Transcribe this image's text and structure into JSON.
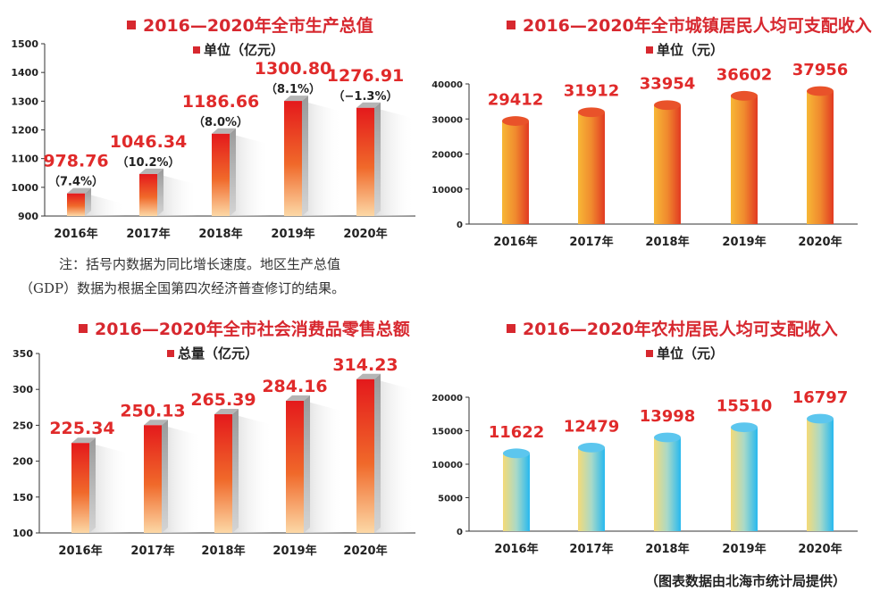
{
  "colors": {
    "title": "#d7282f",
    "label": "#e02a2a",
    "axis": "#333333"
  },
  "chart_data": [
    {
      "type": "bar",
      "title": "2016—2020年全市生产总值",
      "unit_label": "单位（亿元）",
      "categories": [
        "2016年",
        "2017年",
        "2018年",
        "2019年",
        "2020年"
      ],
      "values": [
        978.76,
        1046.34,
        1186.66,
        1300.8,
        1276.91
      ],
      "value_labels": [
        "978.76",
        "1046.34",
        "1186.66",
        "1300.80",
        "1276.91"
      ],
      "growth_labels": [
        "（7.4%）",
        "（10.2%）",
        "（8.0%）",
        "（8.1%）",
        "（−1.3%）"
      ],
      "yticks": [
        "900",
        "1000",
        "1100",
        "1200",
        "1300",
        "1400",
        "1500"
      ],
      "ylim": [
        900,
        1500
      ],
      "style": "red-3d"
    },
    {
      "type": "bar",
      "title": "2016—2020年全市城镇居民人均可支配收入",
      "unit_label": "单位（元）",
      "categories": [
        "2016年",
        "2017年",
        "2018年",
        "2019年",
        "2020年"
      ],
      "values": [
        29412,
        31912,
        33954,
        36602,
        37956
      ],
      "value_labels": [
        "29412",
        "31912",
        "33954",
        "36602",
        "37956"
      ],
      "yticks": [
        "0",
        "10000",
        "20000",
        "30000",
        "40000"
      ],
      "ylim": [
        0,
        40000
      ],
      "style": "orange-cylinder"
    },
    {
      "type": "bar",
      "title": "2016—2020年全市社会消费品零售总额",
      "unit_label": "总量（亿元）",
      "categories": [
        "2016年",
        "2017年",
        "2018年",
        "2019年",
        "2020年"
      ],
      "values": [
        225.34,
        250.13,
        265.39,
        284.16,
        314.23
      ],
      "value_labels": [
        "225.34",
        "250.13",
        "265.39",
        "284.16",
        "314.23"
      ],
      "yticks": [
        "100",
        "150",
        "200",
        "250",
        "300",
        "350"
      ],
      "ylim": [
        100,
        350
      ],
      "style": "red-3d"
    },
    {
      "type": "bar",
      "title": "2016—2020年农村居民人均可支配收入",
      "unit_label": "单位（元）",
      "categories": [
        "2016年",
        "2017年",
        "2018年",
        "2019年",
        "2020年"
      ],
      "values": [
        11622,
        12479,
        13998,
        15510,
        16797
      ],
      "value_labels": [
        "11622",
        "12479",
        "13998",
        "15510",
        "16797"
      ],
      "yticks": [
        "0",
        "5000",
        "10000",
        "15000",
        "20000"
      ],
      "ylim": [
        0,
        20000
      ],
      "style": "blue-cylinder"
    }
  ],
  "note": {
    "line1": "注：括号内数据为同比增长速度。地区生产总值",
    "line2": "（GDP）数据为根据全国第四次经济普查修订的结果。"
  },
  "credit": "（图表数据由北海市统计局提供）"
}
